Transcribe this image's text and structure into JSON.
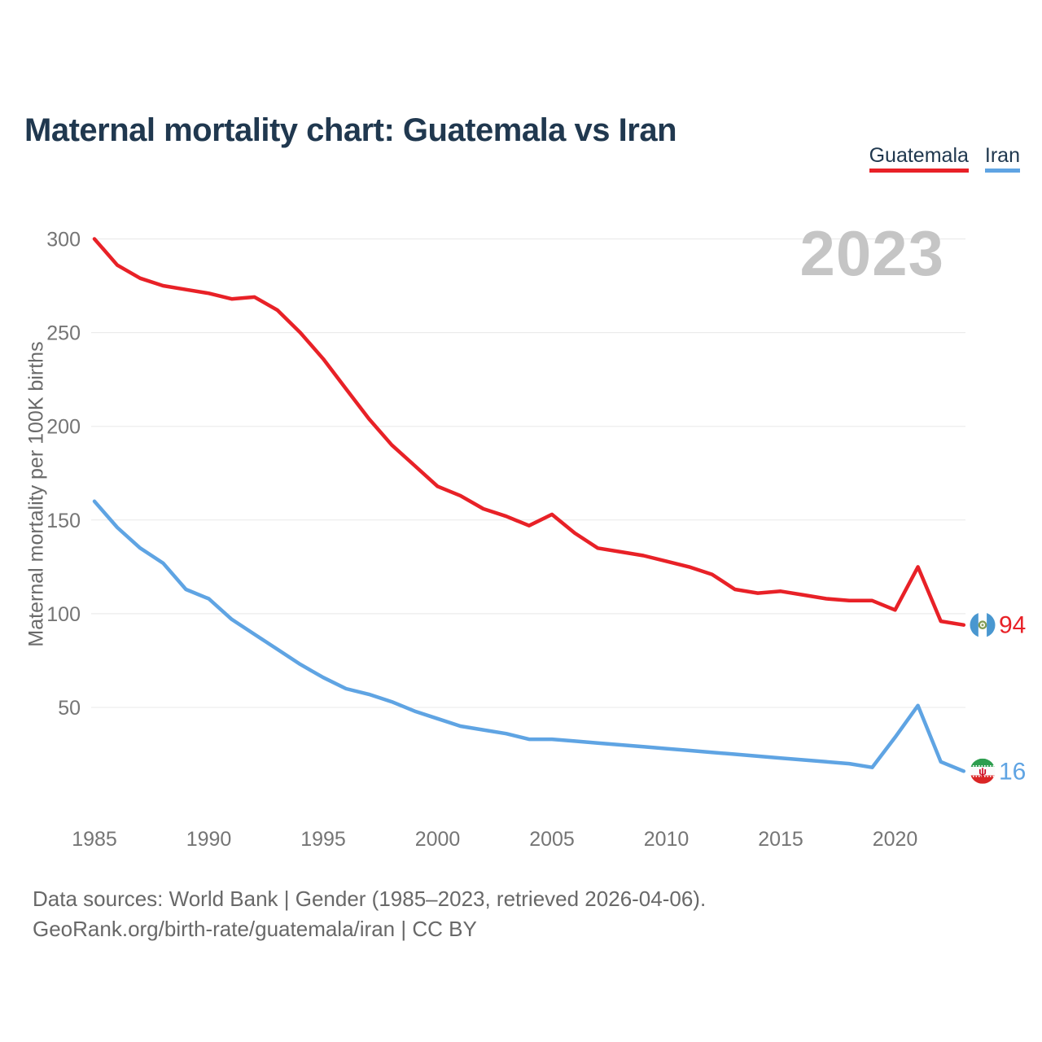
{
  "header": {
    "title": "Maternal mortality chart: Guatemala vs Iran"
  },
  "legend": {
    "items": [
      {
        "label": "Guatemala",
        "color": "#e82127"
      },
      {
        "label": "Iran",
        "color": "#5fa4e3"
      }
    ]
  },
  "watermark": "2023",
  "footer": {
    "line1": "Data sources: World Bank | Gender (1985–2023, retrieved 2026-04-06).",
    "line2": "GeoRank.org/birth-rate/guatemala/iran | CC BY"
  },
  "chart_data": {
    "type": "line",
    "title": "Maternal mortality chart: Guatemala vs Iran",
    "xlabel": "",
    "ylabel": "Maternal mortality per 100K births",
    "xlim": [
      1985,
      2023
    ],
    "ylim": [
      0,
      310
    ],
    "grid": true,
    "legend_position": "top-right",
    "watermark": "2023",
    "x": [
      1985,
      1986,
      1987,
      1988,
      1989,
      1990,
      1991,
      1992,
      1993,
      1994,
      1995,
      1996,
      1997,
      1998,
      1999,
      2000,
      2001,
      2002,
      2003,
      2004,
      2005,
      2006,
      2007,
      2008,
      2009,
      2010,
      2011,
      2012,
      2013,
      2014,
      2015,
      2016,
      2017,
      2018,
      2019,
      2020,
      2021,
      2022,
      2023
    ],
    "x_tick_years": [
      1985,
      1990,
      1995,
      2000,
      2005,
      2010,
      2015,
      2020
    ],
    "y_ticks": [
      300,
      250,
      200,
      150,
      100,
      50
    ],
    "series": [
      {
        "name": "Guatemala",
        "color": "#e82127",
        "flag": "guatemala",
        "end_label": "94",
        "values": [
          300,
          286,
          279,
          275,
          273,
          271,
          268,
          269,
          262,
          250,
          236,
          220,
          204,
          190,
          179,
          168,
          163,
          156,
          152,
          147,
          153,
          143,
          135,
          133,
          131,
          128,
          125,
          121,
          113,
          111,
          112,
          110,
          108,
          107,
          107,
          102,
          125,
          96,
          94
        ]
      },
      {
        "name": "Iran",
        "color": "#5fa4e3",
        "flag": "iran",
        "end_label": "16",
        "values": [
          160,
          146,
          135,
          127,
          113,
          108,
          97,
          89,
          81,
          73,
          66,
          60,
          57,
          53,
          48,
          44,
          40,
          38,
          36,
          33,
          33,
          32,
          31,
          30,
          29,
          28,
          27,
          26,
          25,
          24,
          23,
          22,
          21,
          20,
          18,
          34,
          51,
          21,
          16
        ]
      }
    ]
  }
}
